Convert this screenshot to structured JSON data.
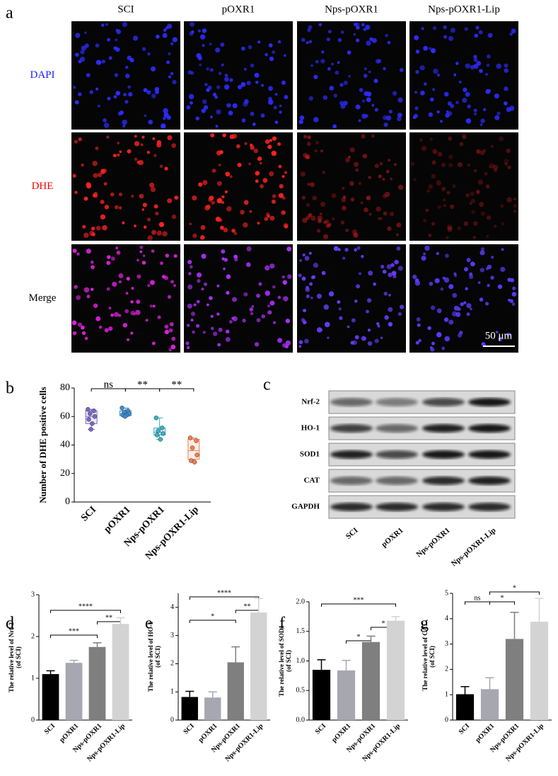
{
  "panel_a": {
    "panel": "a",
    "columns": [
      "SCI",
      "pOXR1",
      "Nps-pOXR1",
      "Nps-pOXR1-Lip"
    ],
    "rows": [
      "DAPI",
      "DHE",
      "Merge"
    ],
    "scale_bar": "50 μm"
  },
  "panel_c": {
    "panel": "c",
    "rows": [
      "Nrf-2",
      "HO-1",
      "SOD1",
      "CAT",
      "GAPDH"
    ],
    "columns": [
      "SCI",
      "pOXR1",
      "Nps-pOXR1",
      "Nps-pOXR1-Lip"
    ]
  },
  "chart_data": [
    {
      "type": "box",
      "panel": "b",
      "y_label": "Number of DHE positive cells",
      "categories": [
        "SCI",
        "pOXR1",
        "Nps-pOXR1",
        "Nps-pOXR1-Lip"
      ],
      "colors": [
        "#7a66c9",
        "#3a8fd6",
        "#35b3c4",
        "#f07f4f"
      ],
      "min": [
        51,
        60,
        44,
        28
      ],
      "q1": [
        55,
        60.5,
        47,
        30
      ],
      "median": [
        60,
        62,
        49,
        36
      ],
      "q3": [
        64,
        64,
        52,
        44
      ],
      "max": [
        65,
        66,
        59,
        45
      ],
      "points": [
        [
          65,
          64,
          62,
          60,
          58,
          55,
          51
        ],
        [
          66,
          64,
          63,
          62,
          61,
          61,
          60
        ],
        [
          59,
          52,
          50,
          48,
          47,
          44
        ],
        [
          45,
          43,
          38,
          33,
          29,
          28
        ]
      ],
      "ylim": [
        0,
        80
      ],
      "yticks": [
        0,
        20,
        40,
        60,
        80
      ],
      "significance": [
        {
          "text": "ns",
          "between": [
            "SCI",
            "pOXR1"
          ]
        },
        {
          "text": "**",
          "between": [
            "pOXR1",
            "Nps-pOXR1"
          ]
        },
        {
          "text": "**",
          "between": [
            "Nps-pOXR1",
            "Nps-pOXR1-Lip"
          ]
        }
      ]
    },
    {
      "type": "bar",
      "panel": "d",
      "y_label": [
        "The relative level of Nrf-2",
        "(of SCI)"
      ],
      "categories": [
        "SCI",
        "pOXR1",
        "Nps-pOXR1",
        "Nps-pOXR1-Lip"
      ],
      "colors": [
        "#000000",
        "#a7a7b2",
        "#7f7f7f",
        "#d3d3d3"
      ],
      "values": [
        1.1,
        1.37,
        1.75,
        2.3
      ],
      "errors": [
        0.08,
        0.06,
        0.1,
        0.15
      ],
      "ylim": [
        0,
        3
      ],
      "yticks": [
        0,
        1,
        2,
        3
      ],
      "significance": [
        {
          "text": "****",
          "between": [
            "SCI",
            "Nps-pOXR1-Lip"
          ]
        },
        {
          "text": "***",
          "between": [
            "SCI",
            "Nps-pOXR1"
          ]
        },
        {
          "text": "**",
          "between": [
            "Nps-pOXR1",
            "Nps-pOXR1-Lip"
          ]
        }
      ]
    },
    {
      "type": "bar",
      "panel": "e",
      "y_label": [
        "The relative level of HO-1",
        "(of SCI)"
      ],
      "categories": [
        "SCI",
        "pOXR1",
        "Nps-pOXR1",
        "Nps-pOXR1-Lip"
      ],
      "colors": [
        "#000000",
        "#a7a7b2",
        "#7f7f7f",
        "#d3d3d3"
      ],
      "values": [
        0.82,
        0.8,
        2.05,
        3.82
      ],
      "errors": [
        0.2,
        0.2,
        0.55,
        0.5
      ],
      "ylim": [
        0,
        4.5
      ],
      "yticks": [
        0,
        1,
        2,
        3,
        4
      ],
      "significance": [
        {
          "text": "****",
          "between": [
            "SCI",
            "Nps-pOXR1-Lip"
          ]
        },
        {
          "text": "*",
          "between": [
            "SCI",
            "Nps-pOXR1"
          ]
        },
        {
          "text": "**",
          "between": [
            "Nps-pOXR1",
            "Nps-pOXR1-Lip"
          ]
        }
      ]
    },
    {
      "type": "bar",
      "panel": "f",
      "y_label": [
        "The relative level of SOD1",
        "(of SCI)"
      ],
      "categories": [
        "SCI",
        "pOXR1",
        "Nps-pOXR1",
        "Nps-pOXR1-Lip"
      ],
      "colors": [
        "#000000",
        "#a7a7b2",
        "#7f7f7f",
        "#d3d3d3"
      ],
      "values": [
        0.85,
        0.84,
        1.32,
        1.68
      ],
      "errors": [
        0.17,
        0.17,
        0.1,
        0.07
      ],
      "ylim": [
        0,
        2
      ],
      "yticks": [
        {
          "value": 0,
          "label": "0.0"
        },
        {
          "value": 0.5,
          "label": "0.5"
        },
        {
          "value": 1,
          "label": "1.0"
        },
        {
          "value": 1.5,
          "label": "1.5"
        },
        {
          "value": 2,
          "label": "2.0"
        }
      ],
      "significance": [
        {
          "text": "***",
          "between": [
            "SCI",
            "Nps-pOXR1-Lip"
          ]
        },
        {
          "text": "*",
          "between": [
            "pOXR1",
            "Nps-pOXR1"
          ]
        },
        {
          "text": "*",
          "between": [
            "Nps-pOXR1",
            "Nps-pOXR1-Lip"
          ]
        }
      ]
    },
    {
      "type": "bar",
      "panel": "g",
      "y_label": [
        "The relative level of CAT",
        "(of SCI)"
      ],
      "categories": [
        "SCI",
        "pOXR1",
        "Nps-pOXR1",
        "Nps-pOXR1-Lip"
      ],
      "colors": [
        "#000000",
        "#a7a7b2",
        "#7f7f7f",
        "#d3d3d3"
      ],
      "values": [
        1.02,
        1.22,
        3.2,
        3.88
      ],
      "errors": [
        0.3,
        0.45,
        1.05,
        0.92
      ],
      "ylim": [
        0,
        5
      ],
      "yticks": [
        0,
        1,
        2,
        3,
        4,
        5
      ],
      "significance": [
        {
          "text": "ns",
          "between": [
            "SCI",
            "pOXR1"
          ]
        },
        {
          "text": "*",
          "between": [
            "pOXR1",
            "Nps-pOXR1"
          ]
        },
        {
          "text": "*",
          "between": [
            "pOXR1",
            "Nps-pOXR1-Lip"
          ]
        }
      ]
    }
  ]
}
